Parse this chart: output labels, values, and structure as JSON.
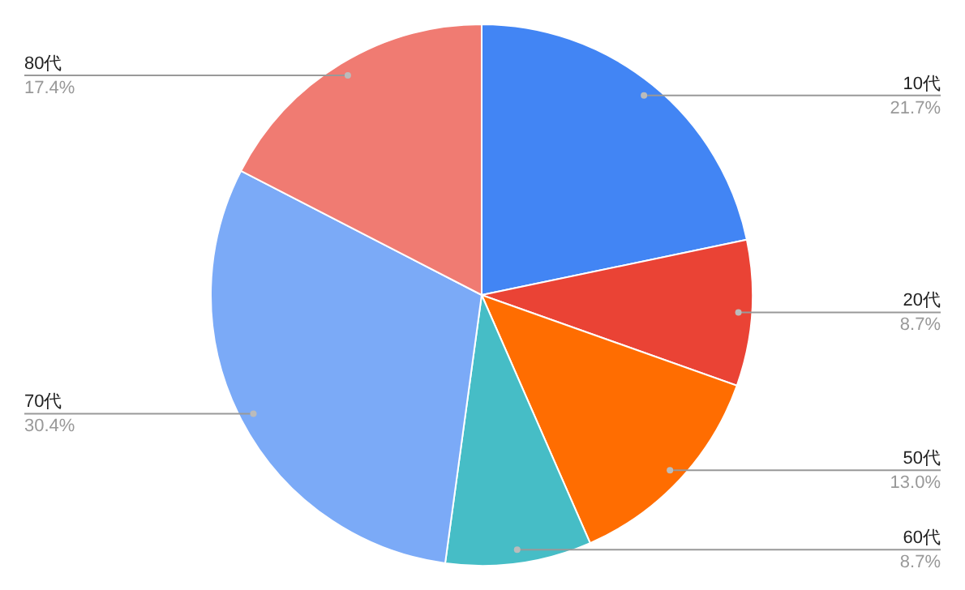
{
  "chart_data": {
    "type": "pie",
    "categories": [
      "10代",
      "20代",
      "50代",
      "60代",
      "70代",
      "80代"
    ],
    "values": [
      21.7,
      8.7,
      13.0,
      8.7,
      30.4,
      17.4
    ],
    "colors": [
      "#4285f4",
      "#ea4335",
      "#ff6d01",
      "#46bdc6",
      "#7baaf7",
      "#f07b72"
    ],
    "value_labels": [
      "21.7%",
      "8.7%",
      "13.0%",
      "8.7%",
      "30.4%",
      "17.4%"
    ]
  }
}
